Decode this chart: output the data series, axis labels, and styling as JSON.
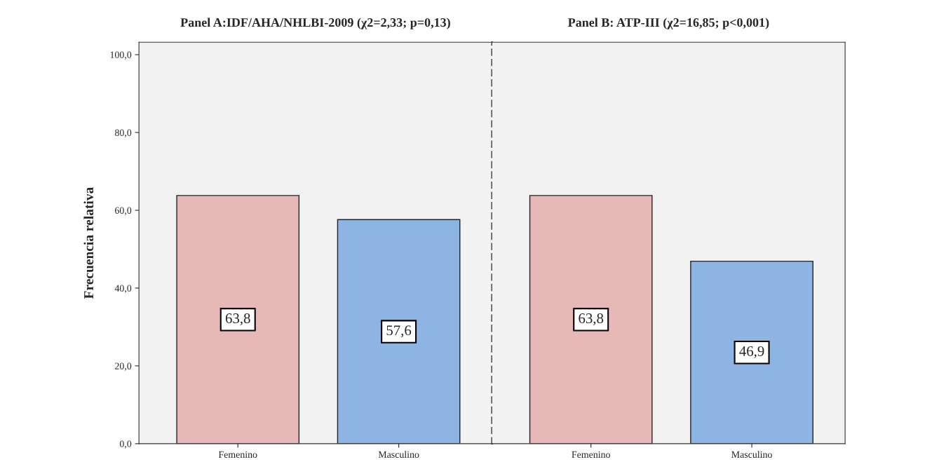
{
  "chart_data": [
    {
      "type": "bar",
      "title": "Panel A:IDF/AHA/NHLBI-2009 (χ2=2,33; p=0,13)",
      "ylabel": "Frecuencia relativa",
      "categories": [
        "Femenino",
        "Masculino"
      ],
      "values": [
        63.8,
        57.6
      ],
      "colors": [
        "#e6b8b7",
        "#8eb4e3"
      ],
      "value_labels": [
        "63,8",
        "57,6"
      ],
      "ylim": [
        0,
        103.2
      ],
      "yticks": [
        {
          "value": 0,
          "label": "0,0"
        },
        {
          "value": 20,
          "label": "20,0"
        },
        {
          "value": 40,
          "label": "40,0"
        },
        {
          "value": 60,
          "label": "60,0"
        },
        {
          "value": 80,
          "label": "80,0"
        },
        {
          "value": 100,
          "label": "100,0"
        }
      ],
      "grid": false
    },
    {
      "type": "bar",
      "title": "Panel B: ATP-III (χ2=16,85; p<0,001)",
      "categories": [
        "Femenino",
        "Masculino"
      ],
      "values": [
        63.8,
        46.9
      ],
      "colors": [
        "#e6b8b7",
        "#8eb4e3"
      ],
      "value_labels": [
        "63,8",
        "46,9"
      ],
      "ylim": [
        0,
        103.2
      ],
      "tick_labels": "x",
      "grid": false
    }
  ]
}
